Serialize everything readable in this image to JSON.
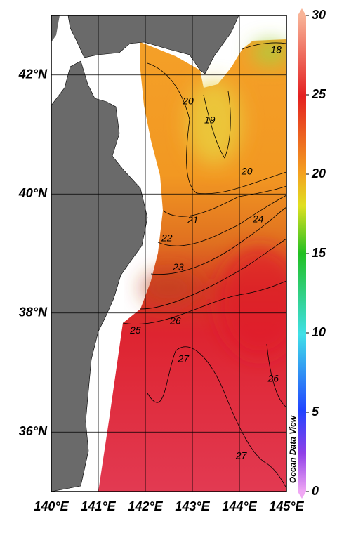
{
  "chart_data": {
    "type": "map",
    "xlim": [
      140,
      145
    ],
    "ylim": [
      35,
      43
    ],
    "xticks": [
      {
        "value": 140,
        "label": "140°E"
      },
      {
        "value": 141,
        "label": "141°E"
      },
      {
        "value": 142,
        "label": "142°E"
      },
      {
        "value": 143,
        "label": "143°E"
      },
      {
        "value": 144,
        "label": "144°E"
      },
      {
        "value": 145,
        "label": "145°E"
      }
    ],
    "yticks": [
      {
        "value": 36,
        "label": "36°N"
      },
      {
        "value": 38,
        "label": "38°N"
      },
      {
        "value": 40,
        "label": "40°N"
      },
      {
        "value": 42,
        "label": "42°N"
      }
    ],
    "grid": true,
    "colorbar": {
      "lim": [
        0,
        30
      ],
      "ticks": [
        0,
        5,
        10,
        15,
        20,
        25,
        30
      ]
    },
    "contour_labels": [
      {
        "level": 18,
        "lon": 144.78,
        "lat": 42.41
      },
      {
        "level": 19,
        "lon": 143.37,
        "lat": 41.23
      },
      {
        "level": 20,
        "lon": 142.91,
        "lat": 41.55
      },
      {
        "level": 20,
        "lon": 144.16,
        "lat": 40.37
      },
      {
        "level": 21,
        "lon": 143.01,
        "lat": 39.55
      },
      {
        "level": 22,
        "lon": 142.46,
        "lat": 39.25
      },
      {
        "level": 23,
        "lon": 142.7,
        "lat": 38.76
      },
      {
        "level": 24,
        "lon": 144.4,
        "lat": 39.57
      },
      {
        "level": 25,
        "lon": 141.79,
        "lat": 37.7
      },
      {
        "level": 26,
        "lon": 142.64,
        "lat": 37.86
      },
      {
        "level": 26,
        "lon": 144.72,
        "lat": 36.89
      },
      {
        "level": 27,
        "lon": 142.81,
        "lat": 37.22
      },
      {
        "level": 27,
        "lon": 144.04,
        "lat": 35.59
      }
    ],
    "watermark": "Ocean Data View"
  }
}
